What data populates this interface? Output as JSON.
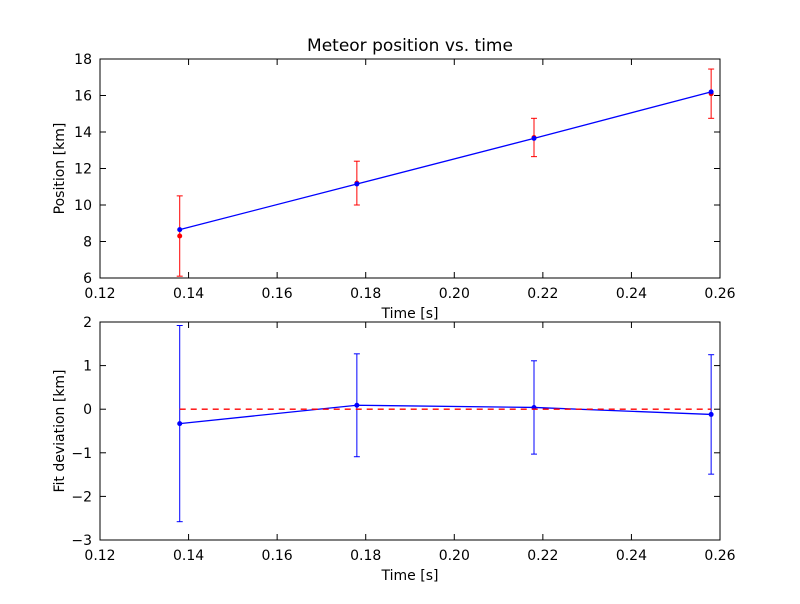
{
  "chart_data": [
    {
      "type": "line",
      "title": "Meteor position vs. time",
      "xlabel": "Time [s]",
      "ylabel": "Position [km]",
      "xlim": [
        0.12,
        0.26
      ],
      "ylim": [
        6,
        18
      ],
      "xticks": [
        "0.12",
        "0.14",
        "0.16",
        "0.18",
        "0.20",
        "0.22",
        "0.24",
        "0.26"
      ],
      "yticks": [
        "6",
        "8",
        "10",
        "12",
        "14",
        "16",
        "18"
      ],
      "grid": false,
      "series": [
        {
          "color": "#ff0000",
          "style": "points-with-errorbars",
          "x": [
            0.138,
            0.178,
            0.218,
            0.258
          ],
          "y": [
            8.3,
            11.2,
            13.7,
            16.1
          ],
          "yerr": [
            2.2,
            1.2,
            1.05,
            1.35
          ]
        },
        {
          "color": "#0000ff",
          "style": "line",
          "x": [
            0.138,
            0.178,
            0.218,
            0.258
          ],
          "y": [
            8.65,
            11.15,
            13.65,
            16.2
          ]
        }
      ]
    },
    {
      "type": "line",
      "title": "",
      "xlabel": "Time [s]",
      "ylabel": "Fit deviation [km]",
      "xlim": [
        0.12,
        0.26
      ],
      "ylim": [
        -3,
        2
      ],
      "xticks": [
        "0.12",
        "0.14",
        "0.16",
        "0.18",
        "0.20",
        "0.22",
        "0.24",
        "0.26"
      ],
      "yticks": [
        "−3",
        "−2",
        "−1",
        "0",
        "1",
        "2"
      ],
      "grid": false,
      "series": [
        {
          "color": "#0000ff",
          "style": "line-with-errorbars",
          "x": [
            0.138,
            0.178,
            0.218,
            0.258
          ],
          "y": [
            -0.33,
            0.09,
            0.04,
            -0.12
          ],
          "yerr": [
            2.25,
            1.18,
            1.07,
            1.37
          ]
        },
        {
          "color": "#ff0000",
          "style": "dashed-reference",
          "x": [
            0.138,
            0.258
          ],
          "y": [
            0,
            0
          ]
        }
      ]
    }
  ]
}
